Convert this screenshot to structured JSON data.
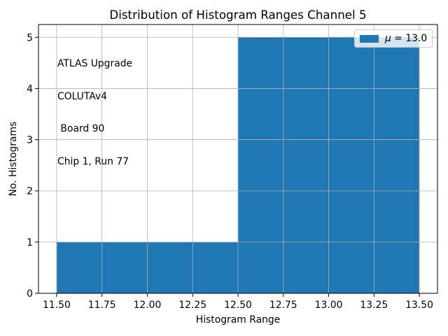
{
  "chart_data": {
    "type": "bar",
    "subtype": "histogram",
    "title": "Distribution of Histogram Ranges Channel 5",
    "xlabel": "Histogram Range",
    "ylabel": "No. Histograms",
    "bin_edges": [
      11.5,
      12.5,
      13.5
    ],
    "counts": [
      1,
      5
    ],
    "xlim": [
      11.4,
      13.6
    ],
    "ylim": [
      0,
      5.25
    ],
    "xticks": {
      "values": [
        11.5,
        11.75,
        12.0,
        12.25,
        12.5,
        12.75,
        13.0,
        13.25,
        13.5
      ],
      "labels": [
        "11.50",
        "11.75",
        "12.00",
        "12.25",
        "12.50",
        "12.75",
        "13.00",
        "13.25",
        "13.50"
      ]
    },
    "yticks": {
      "values": [
        0,
        1,
        2,
        3,
        4,
        5
      ],
      "labels": [
        "0",
        "1",
        "2",
        "3",
        "4",
        "5"
      ]
    },
    "grid": true,
    "grid_above_bars": true,
    "colors": {
      "bar": "#1f77b4",
      "grid": "#b0b0b0",
      "spine": "#000000",
      "text": "#000000",
      "legend_edge": "#cccccc"
    },
    "legend": {
      "position": "upper right",
      "label": "μ = 13.0",
      "mu": "μ",
      "value": "= 13.0"
    },
    "annotation": {
      "lines": [
        "ATLAS Upgrade",
        "COLUTAv4",
        " Board 90",
        "Chip 1, Run 77"
      ]
    }
  }
}
